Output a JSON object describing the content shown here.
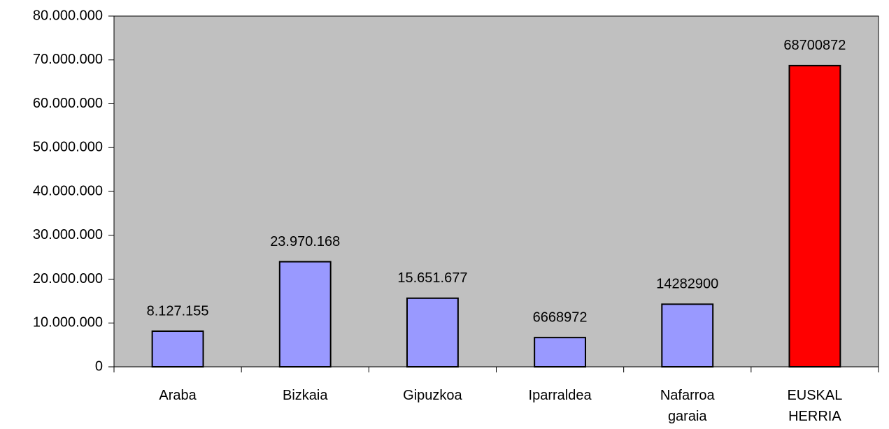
{
  "chart_data": {
    "type": "bar",
    "categories": [
      "Araba",
      "Bizkaia",
      "Gipuzkoa",
      "Iparraldea",
      "Nafarroa garaia",
      "EUSKAL HERRIA"
    ],
    "values": [
      8127155,
      23970168,
      15651677,
      6668972,
      14282900,
      68700872
    ],
    "value_labels": [
      "8.127.155",
      "23.970.168",
      "15.651.677",
      "6668972",
      "14282900",
      "68700872"
    ],
    "colors": [
      "#9999ff",
      "#9999ff",
      "#9999ff",
      "#9999ff",
      "#9999ff",
      "#ff0000"
    ],
    "ylim": [
      0,
      80000000
    ],
    "yticks": [
      0,
      {
        "value": 10000000,
        "label": "10.000.000"
      },
      {
        "value": 20000000,
        "label": "20.000.000"
      },
      {
        "value": 30000000,
        "label": "30.000.000"
      },
      {
        "value": 40000000,
        "label": "40.000.000"
      },
      {
        "value": 50000000,
        "label": "50.000.000"
      },
      {
        "value": 60000000,
        "label": "60.000.000"
      },
      {
        "value": 70000000,
        "label": "70.000.000"
      },
      {
        "value": 80000000,
        "label": "80.000.000"
      }
    ],
    "grid": false,
    "plot_background": "#c0c0c0"
  }
}
